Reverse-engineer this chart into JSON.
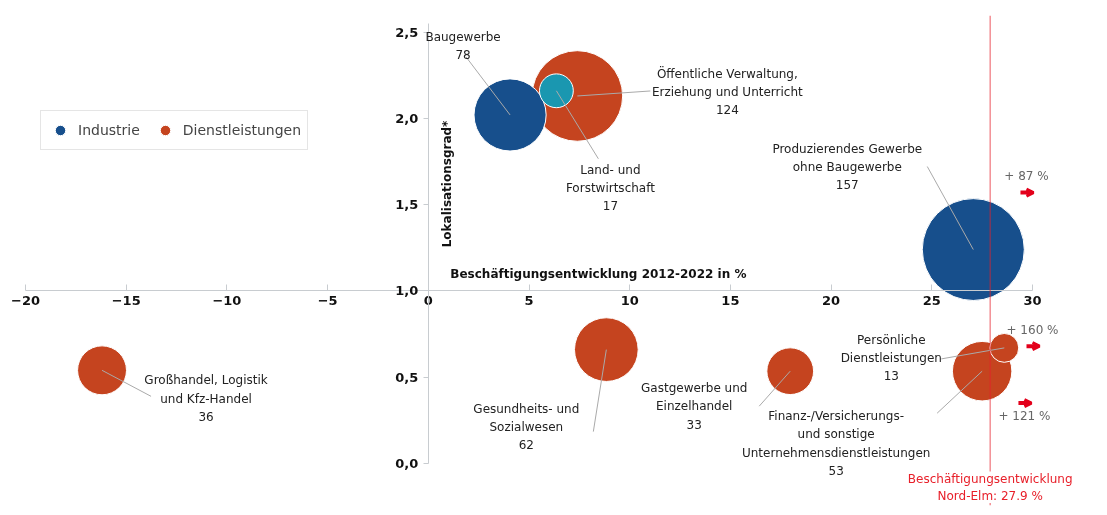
{
  "chart_data": {
    "type": "bubble",
    "xlabel": "Beschäftigungsentwicklung 2012-2022 in %",
    "ylabel": "Lokalisationsgrad*",
    "series": [
      {
        "name": "Dienstleistungen",
        "color": "#c5441f",
        "x": [
          7.4,
          -16.2,
          8.84,
          17.97,
          27.5,
          28.6
        ],
        "values": [
          2.13,
          0.54,
          0.66,
          0.535,
          0.535,
          0.67
        ],
        "sizes": [
          0.79,
          0.23,
          0.39,
          0.21,
          0.34,
          0.08
        ]
      },
      {
        "name": "Industrie",
        "color": "#174f8c",
        "x": [
          4.06,
          27.06
        ],
        "values": [
          2.02,
          1.24
        ],
        "sizes": [
          0.5,
          1
        ]
      },
      {
        "color": "#1a97b0",
        "x": [
          6.36
        ],
        "values": [
          2.16
        ],
        "sizes": [
          0.11
        ]
      }
    ],
    "annotations": [
      {
        "text": "Öffentliche Verwaltung,\nErziehung und Unterricht\n124",
        "x": 7.4,
        "y": 2.13
      },
      {
        "text": "Großhandel, Logistik\nund Kfz-Handel\n36",
        "x": -16.2,
        "y": 0.54
      },
      {
        "text": "Gesundheits- und\nSozialwesen\n62",
        "x": 8.84,
        "y": 0.66
      },
      {
        "text": "Gastgewerbe und\nEinzelhandel\n33",
        "x": 17.97,
        "y": 0.535
      },
      {
        "text": "Finanz-/Versicherungs-\nund sonstige\nUnternehmensdienstleistungen\n53",
        "x": 27.5,
        "y": 0.535
      },
      {
        "text": "Persönliche\nDienstleistungen\n13",
        "x": 28.6,
        "y": 0.67
      },
      {
        "text": "Baugewerbe\n78",
        "x": 4.06,
        "y": 2.02
      },
      {
        "text": "Produzierendes Gewerbe\nohne Baugewerbe\n157",
        "x": 27.06,
        "y": 1.24
      },
      {
        "text": "Land- und\nForstwirtschaft\n17",
        "x": 6.36,
        "y": 2.16
      },
      "+ 87 %",
      "+ 160 %",
      "+ 121 %"
    ],
    "ref_lines": [
      {
        "axis": "x",
        "value": 27.9,
        "label": "Beschäftigungsentwicklung\nNord-Elm: 27.9 %",
        "color": "#e8202a"
      }
    ],
    "xlim": [
      -20,
      30
    ],
    "ylim": [
      0,
      2.55
    ],
    "xticks": [
      -20,
      -15,
      -10,
      -5,
      0,
      5,
      10,
      15,
      20,
      25,
      30
    ],
    "yticks": [
      {
        "value": 0,
        "label": "0,0"
      },
      {
        "value": 0.5,
        "label": "0,5"
      },
      {
        "value": 1.0,
        "label": "1,0"
      },
      {
        "value": 1.5,
        "label": "1,5"
      },
      {
        "value": 2.0,
        "label": "2,0"
      },
      {
        "value": 2.5,
        "label": "2,5"
      }
    ],
    "grid": false,
    "legend": "top left"
  }
}
